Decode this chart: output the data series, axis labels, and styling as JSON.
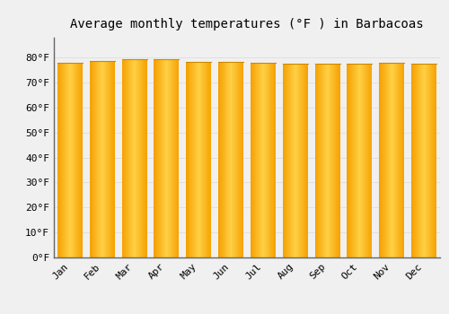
{
  "title": "Average monthly temperatures (°F ) in Barbacoas",
  "months": [
    "Jan",
    "Feb",
    "Mar",
    "Apr",
    "May",
    "Jun",
    "Jul",
    "Aug",
    "Sep",
    "Oct",
    "Nov",
    "Dec"
  ],
  "values": [
    78.1,
    78.6,
    79.5,
    79.3,
    78.4,
    78.3,
    78.1,
    77.5,
    77.5,
    77.5,
    77.9,
    77.7
  ],
  "bar_color_left": "#F5A000",
  "bar_color_center": "#FFD045",
  "bar_color_right": "#F5A000",
  "bar_edge_color": "#CC8800",
  "background_color": "#F0F0F0",
  "ylim": [
    0,
    88
  ],
  "yticks": [
    0,
    10,
    20,
    30,
    40,
    50,
    60,
    70,
    80
  ],
  "ytick_labels": [
    "0°F",
    "10°F",
    "20°F",
    "30°F",
    "40°F",
    "50°F",
    "60°F",
    "70°F",
    "80°F"
  ],
  "title_fontsize": 10,
  "tick_fontsize": 8,
  "grid_color": "#E0E0E0",
  "font_family": "monospace"
}
